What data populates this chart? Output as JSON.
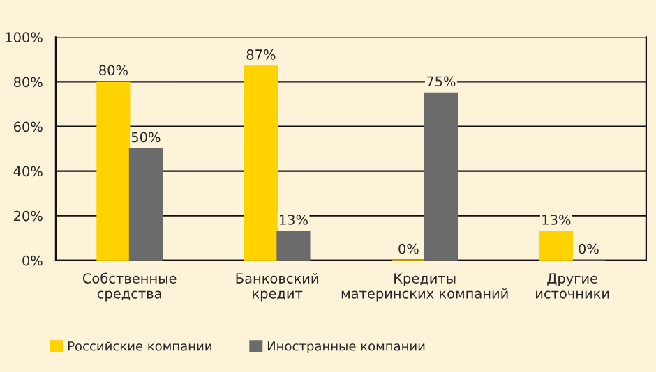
{
  "chart_data": {
    "type": "bar",
    "categories": [
      "Собственные\nсредства",
      "Банковский\nкредит",
      "Кредиты\nматеринских компаний",
      "Другие\nисточники"
    ],
    "series": [
      {
        "name": "Российские компании",
        "color": "#ffd200",
        "values": [
          80,
          87,
          0,
          13
        ],
        "value_labels": [
          "80%",
          "87%",
          "0%",
          "13%"
        ]
      },
      {
        "name": "Иностранные компании",
        "color": "#6b6b6b",
        "values": [
          50,
          13,
          75,
          0
        ],
        "value_labels": [
          "50%",
          "13%",
          "75%",
          "0%"
        ]
      }
    ],
    "ylim": [
      0,
      100
    ],
    "yticks": [
      {
        "value": 0,
        "label": "0%"
      },
      {
        "value": 20,
        "label": "20%"
      },
      {
        "value": 40,
        "label": "40%"
      },
      {
        "value": 60,
        "label": "60%"
      },
      {
        "value": 80,
        "label": "80%"
      },
      {
        "value": 100,
        "label": "100%"
      }
    ],
    "grid": "y",
    "legend": "bottom left"
  }
}
